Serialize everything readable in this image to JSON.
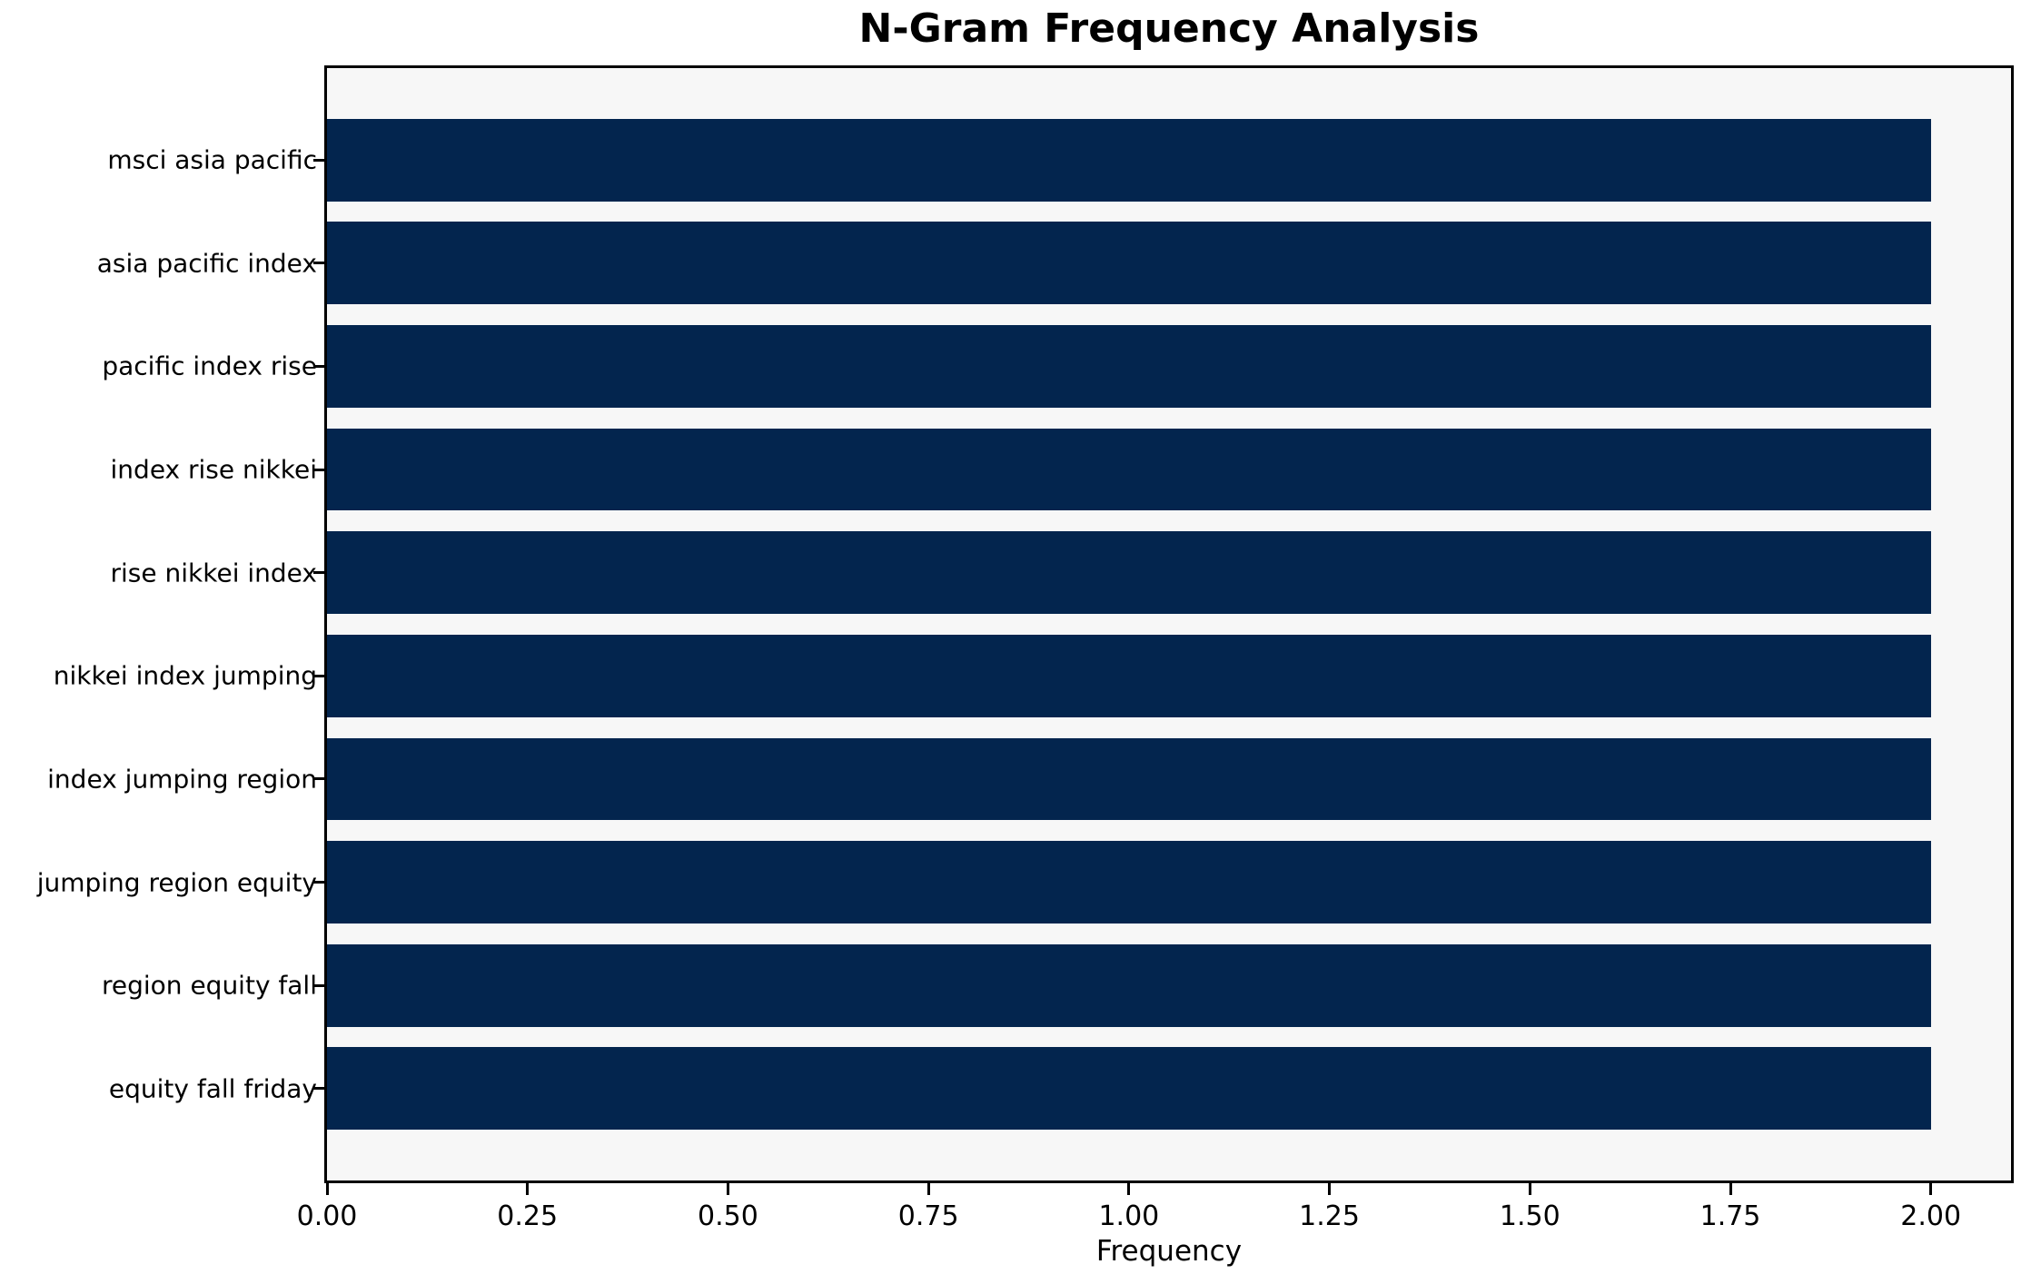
{
  "chart_data": {
    "type": "bar",
    "orientation": "horizontal",
    "title": "N-Gram Frequency Analysis",
    "xlabel": "Frequency",
    "ylabel": "",
    "categories": [
      "msci asia pacific",
      "asia pacific index",
      "pacific index rise",
      "index rise nikkei",
      "rise nikkei index",
      "nikkei index jumping",
      "index jumping region",
      "jumping region equity",
      "region equity fall",
      "equity fall friday"
    ],
    "values": [
      2,
      2,
      2,
      2,
      2,
      2,
      2,
      2,
      2,
      2
    ],
    "xlim": [
      0,
      2.1
    ],
    "xticks": [
      {
        "value": 0.0,
        "label": "0.00"
      },
      {
        "value": 0.25,
        "label": "0.25"
      },
      {
        "value": 0.5,
        "label": "0.50"
      },
      {
        "value": 0.75,
        "label": "0.75"
      },
      {
        "value": 1.0,
        "label": "1.00"
      },
      {
        "value": 1.25,
        "label": "1.25"
      },
      {
        "value": 1.5,
        "label": "1.50"
      },
      {
        "value": 1.75,
        "label": "1.75"
      },
      {
        "value": 2.0,
        "label": "2.00"
      }
    ],
    "grid": false,
    "legend": null,
    "colors": {
      "bar": "#03254e",
      "plot_background": "#f7f7f7",
      "figure_background": "#ffffff",
      "spine": "#000000",
      "text": "#000000"
    },
    "bar_height_fraction": 0.8
  }
}
